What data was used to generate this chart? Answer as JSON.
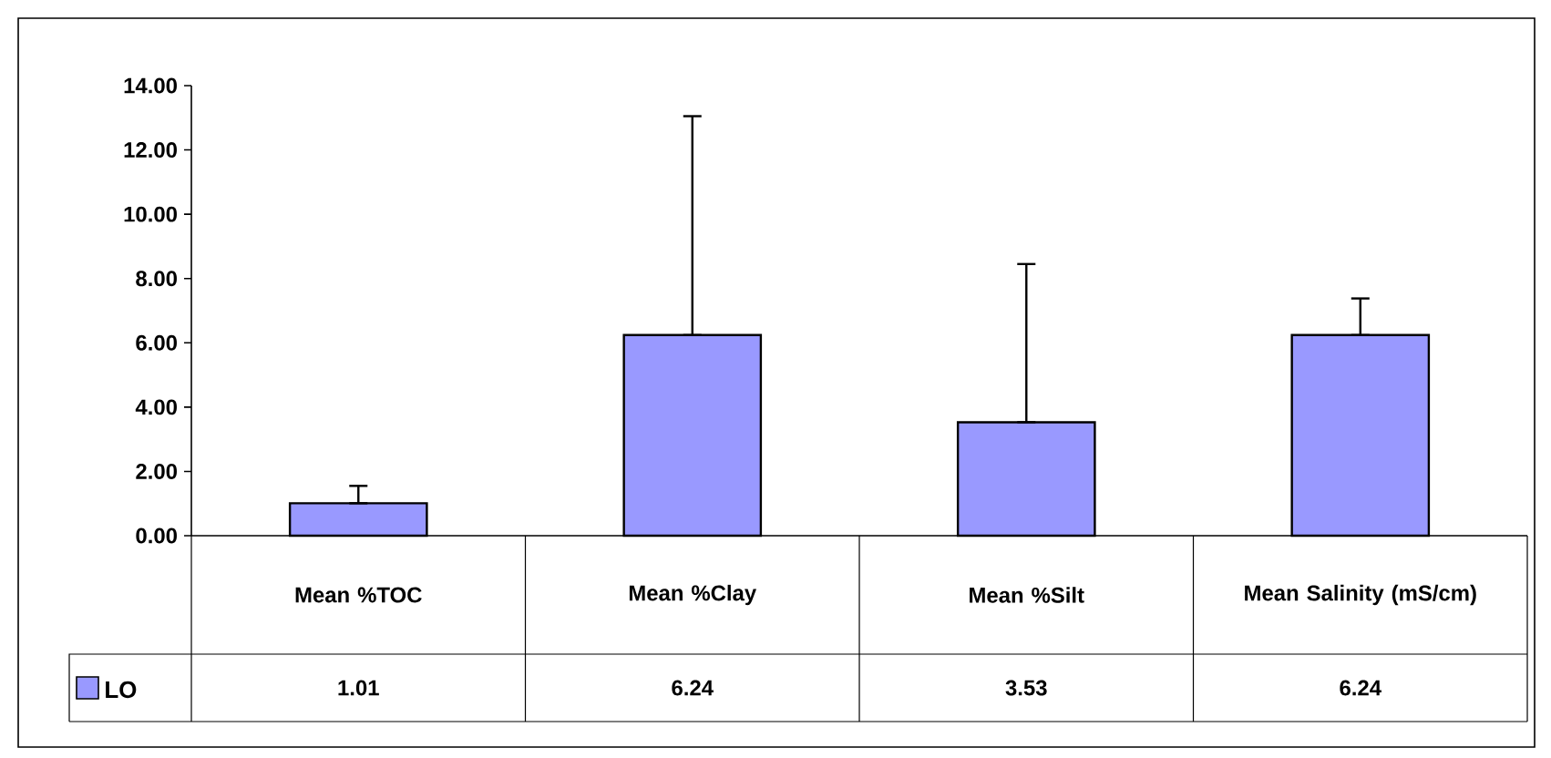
{
  "chart_data": {
    "type": "bar",
    "categories": [
      "Mean %TOC",
      "Mean %Clay",
      "Mean %Silt",
      "Mean Salinity (mS/cm)"
    ],
    "series": [
      {
        "name": "LO",
        "color": "#9999ff",
        "values": [
          1.01,
          6.24,
          3.53,
          6.24
        ],
        "errors": [
          [
            1.01,
            1.55
          ],
          [
            6.24,
            13.05
          ],
          [
            3.53,
            8.45
          ],
          [
            6.24,
            7.38
          ]
        ]
      }
    ],
    "ylim": [
      0,
      14
    ],
    "yticks": [
      {
        "value": 0,
        "label": "0.00"
      },
      {
        "value": 2,
        "label": "2.00"
      },
      {
        "value": 4,
        "label": "4.00"
      },
      {
        "value": 6,
        "label": "6.00"
      },
      {
        "value": 8,
        "label": "8.00"
      },
      {
        "value": 10,
        "label": "10.00"
      },
      {
        "value": 12,
        "label": "12.00"
      },
      {
        "value": 14,
        "label": "14.00"
      }
    ],
    "data_labels": true,
    "legend": "bottom left"
  }
}
